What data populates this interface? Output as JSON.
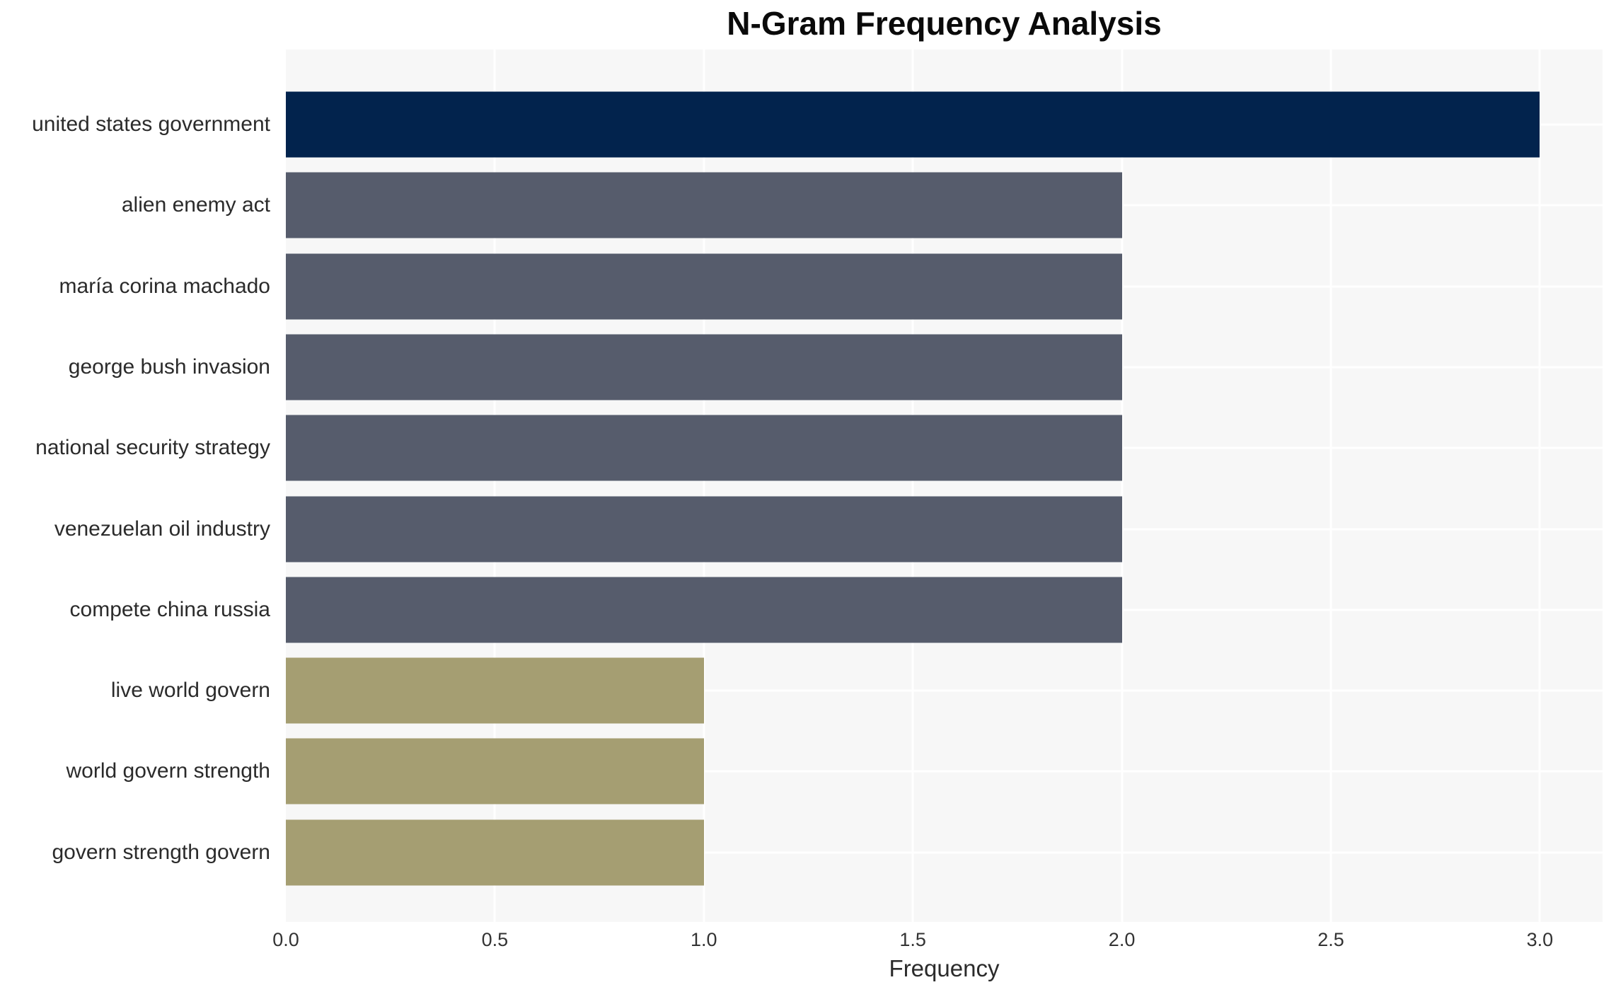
{
  "chart_data": {
    "type": "bar",
    "orientation": "horizontal",
    "title": "N-Gram Frequency Analysis",
    "xlabel": "Frequency",
    "ylabel": "",
    "categories": [
      "united states government",
      "alien enemy act",
      "maría corina machado",
      "george bush invasion",
      "national security strategy",
      "venezuelan oil industry",
      "compete china russia",
      "live world govern",
      "world govern strength",
      "govern strength govern"
    ],
    "values": [
      3.0,
      2.0,
      2.0,
      2.0,
      2.0,
      2.0,
      2.0,
      1.0,
      1.0,
      1.0
    ],
    "bar_colors": [
      "#02234d",
      "#565c6c",
      "#565c6c",
      "#565c6c",
      "#565c6c",
      "#565c6c",
      "#565c6c",
      "#a59e72",
      "#a59e72",
      "#a59e72"
    ],
    "xticks": [
      0.0,
      0.5,
      1.0,
      1.5,
      2.0,
      2.5,
      3.0
    ],
    "xtick_labels": [
      "0.0",
      "0.5",
      "1.0",
      "1.5",
      "2.0",
      "2.5",
      "3.0"
    ],
    "xlim": [
      0,
      3.15
    ],
    "grid": true,
    "legend": false,
    "plot_bg": "#f7f7f7",
    "grid_color": "#ffffff",
    "title_color": "#0a0a0a",
    "label_color": "#2b2b2b",
    "tick_color": "#333333"
  }
}
